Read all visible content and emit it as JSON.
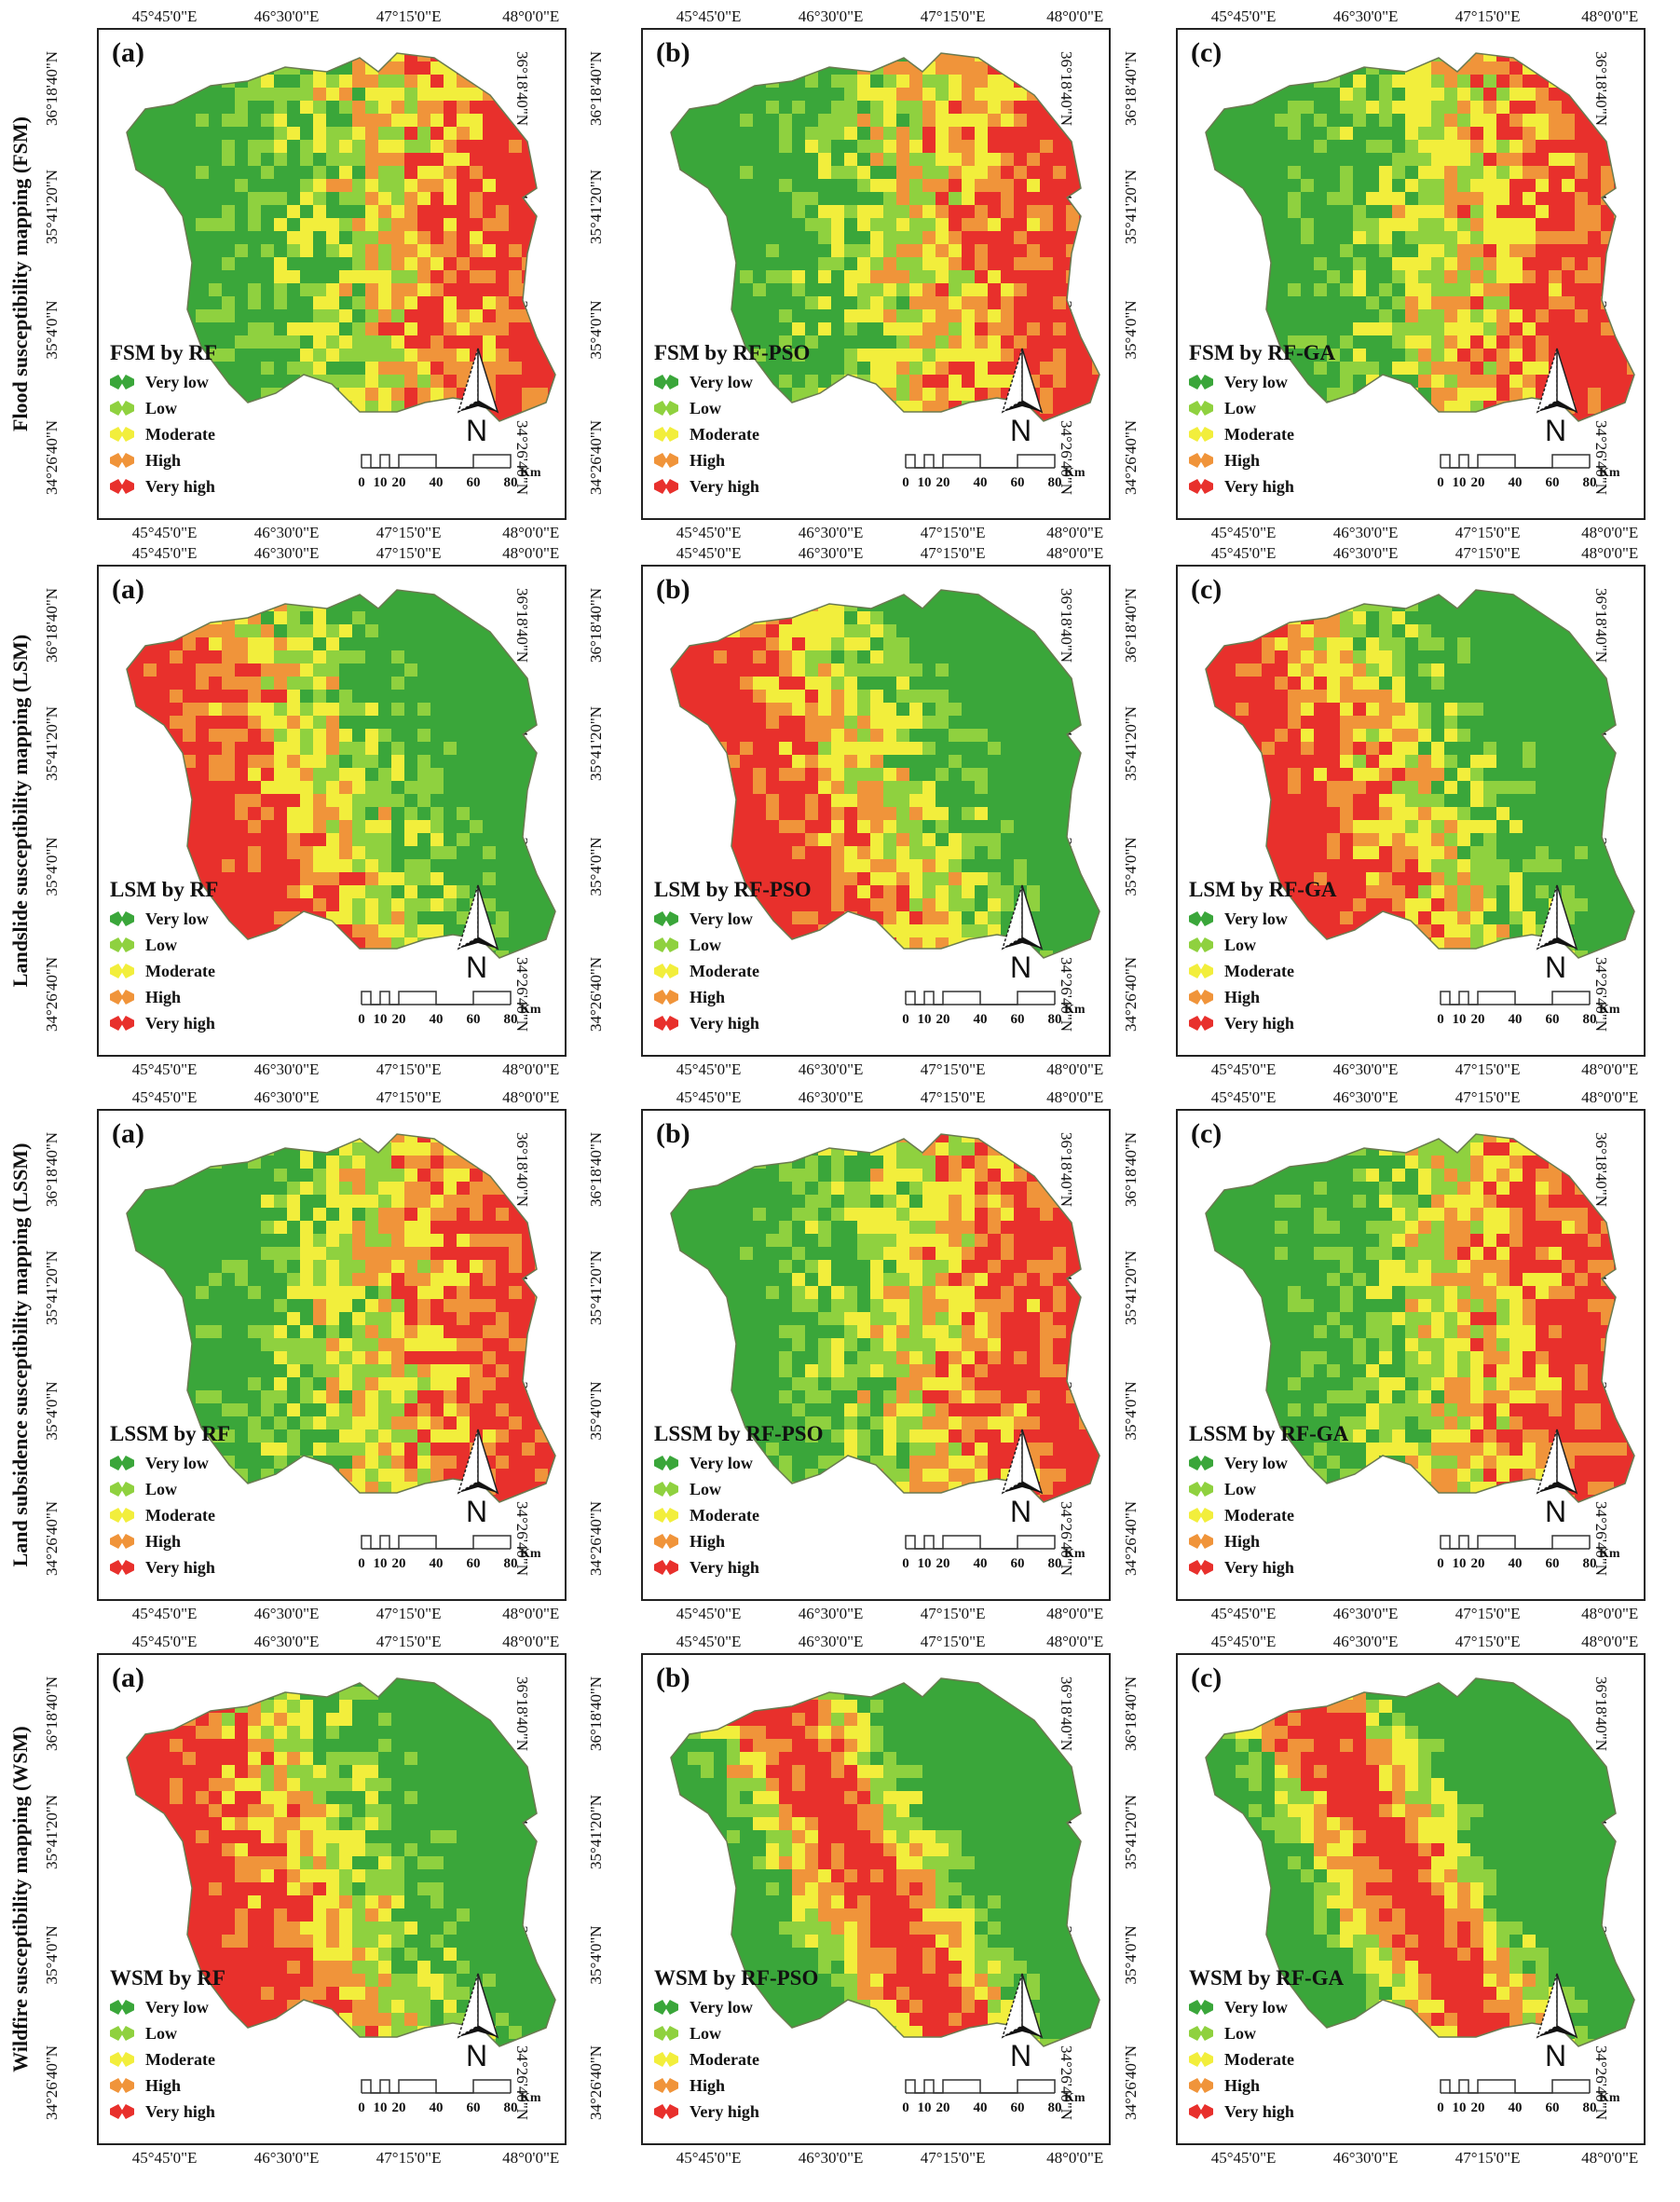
{
  "rows": [
    {
      "label": "Flood susceptibility mapping (FSM)",
      "abbr": "FSM"
    },
    {
      "label": "Landslide susceptibility mapping (LSM)",
      "abbr": "LSM"
    },
    {
      "label": "Land subsidence susceptibility mapping (LSSM)",
      "abbr": "LSSM"
    },
    {
      "label": "Wildfire susceptibility mapping (WSM)",
      "abbr": "WSM"
    }
  ],
  "columns": [
    {
      "letter": "(a)",
      "model": "RF"
    },
    {
      "letter": "(b)",
      "model": "RF-PSO"
    },
    {
      "letter": "(c)",
      "model": "RF-GA"
    }
  ],
  "titles": [
    [
      "FSM by RF",
      "FSM by RF-PSO",
      "FSM by RF-GA"
    ],
    [
      "LSM by RF",
      "LSM by RF-PSO",
      "LSM by RF-GA"
    ],
    [
      "LSSM by RF",
      "LSSM by RF-PSO",
      "LSSM by RF-GA"
    ],
    [
      "WSM by RF",
      "WSM by RF-PSO",
      "WSM by RF-GA"
    ]
  ],
  "legend": [
    {
      "label": "Very low",
      "color": "#3aa63a"
    },
    {
      "label": "Low",
      "color": "#8fd13f"
    },
    {
      "label": "Moderate",
      "color": "#f2ee3c"
    },
    {
      "label": "High",
      "color": "#f0943a"
    },
    {
      "label": "Very high",
      "color": "#e8302c"
    }
  ],
  "lon_ticks": [
    "45°45'0\"E",
    "46°30'0\"E",
    "47°15'0\"E",
    "48°0'0\"E"
  ],
  "lat_ticks": [
    "36°18'40\"N",
    "35°41'20\"N",
    "35°4'0\"N",
    "34°26'40\"N"
  ],
  "north_label": "N",
  "scale": {
    "labels": [
      "0",
      "10",
      "20",
      "40",
      "60",
      "80"
    ],
    "unit": "Km"
  },
  "patterns": [
    [
      "east",
      "east",
      "east"
    ],
    [
      "west",
      "west",
      "west"
    ],
    [
      "east",
      "east",
      "east"
    ],
    [
      "west",
      "band",
      "band"
    ]
  ]
}
